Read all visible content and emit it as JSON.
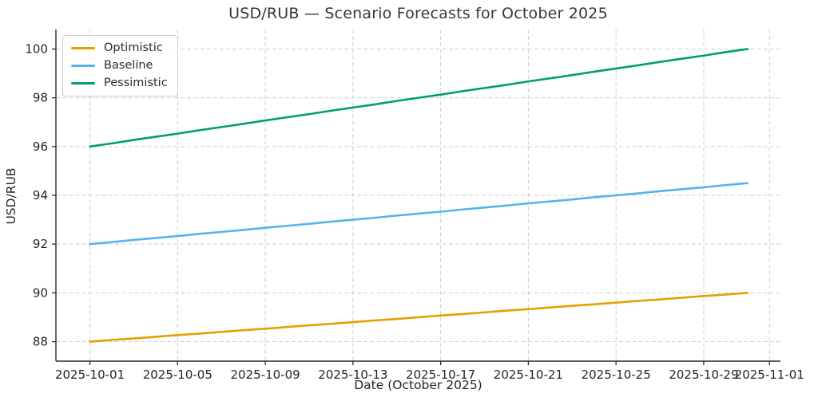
{
  "chart_data": {
    "type": "line",
    "title": "USD/RUB — Scenario Forecasts for October 2025",
    "xlabel": "Date (October 2025)",
    "ylabel": "USD/RUB",
    "x": [
      "2025-10-01",
      "2025-10-02",
      "2025-10-03",
      "2025-10-04",
      "2025-10-05",
      "2025-10-06",
      "2025-10-07",
      "2025-10-08",
      "2025-10-09",
      "2025-10-10",
      "2025-10-11",
      "2025-10-12",
      "2025-10-13",
      "2025-10-14",
      "2025-10-15",
      "2025-10-16",
      "2025-10-17",
      "2025-10-18",
      "2025-10-19",
      "2025-10-20",
      "2025-10-21",
      "2025-10-22",
      "2025-10-23",
      "2025-10-24",
      "2025-10-25",
      "2025-10-26",
      "2025-10-27",
      "2025-10-28",
      "2025-10-29",
      "2025-10-30",
      "2025-10-31"
    ],
    "series": [
      {
        "name": "Optimistic",
        "color": "#E69F00",
        "values": [
          88.0,
          88.07,
          88.13,
          88.2,
          88.27,
          88.33,
          88.4,
          88.47,
          88.53,
          88.6,
          88.67,
          88.73,
          88.8,
          88.87,
          88.93,
          89.0,
          89.07,
          89.13,
          89.2,
          89.27,
          89.33,
          89.4,
          89.47,
          89.53,
          89.6,
          89.67,
          89.73,
          89.8,
          89.87,
          89.93,
          90.0
        ]
      },
      {
        "name": "Baseline",
        "color": "#56B4E9",
        "values": [
          92.0,
          92.08,
          92.17,
          92.25,
          92.33,
          92.42,
          92.5,
          92.58,
          92.67,
          92.75,
          92.83,
          92.92,
          93.0,
          93.08,
          93.17,
          93.25,
          93.33,
          93.42,
          93.5,
          93.58,
          93.67,
          93.75,
          93.83,
          93.92,
          94.0,
          94.08,
          94.17,
          94.25,
          94.33,
          94.42,
          94.5
        ]
      },
      {
        "name": "Pessimistic",
        "color": "#009E73",
        "values": [
          96.0,
          96.13,
          96.27,
          96.4,
          96.53,
          96.67,
          96.8,
          96.93,
          97.07,
          97.2,
          97.33,
          97.47,
          97.6,
          97.73,
          97.87,
          98.0,
          98.13,
          98.27,
          98.4,
          98.53,
          98.67,
          98.8,
          98.93,
          99.07,
          99.2,
          99.33,
          99.47,
          99.6,
          99.73,
          99.87,
          100.0
        ]
      }
    ],
    "y_ticks": [
      88,
      90,
      92,
      94,
      96,
      98,
      100
    ],
    "x_tick_labels": [
      "2025-10-01",
      "2025-10-05",
      "2025-10-09",
      "2025-10-13",
      "2025-10-17",
      "2025-10-21",
      "2025-10-25",
      "2025-10-29",
      "2025-11-01"
    ],
    "x_tick_days": [
      0,
      4,
      8,
      12,
      16,
      20,
      24,
      28,
      31
    ],
    "ylim": [
      87.2,
      100.8
    ],
    "xlim_days": [
      -1.55,
      31.5
    ],
    "grid": true,
    "grid_style": "dashed",
    "grid_color": "#cfcfcf",
    "axis_color": "#2b2b2b",
    "legend_position": "upper-left"
  }
}
